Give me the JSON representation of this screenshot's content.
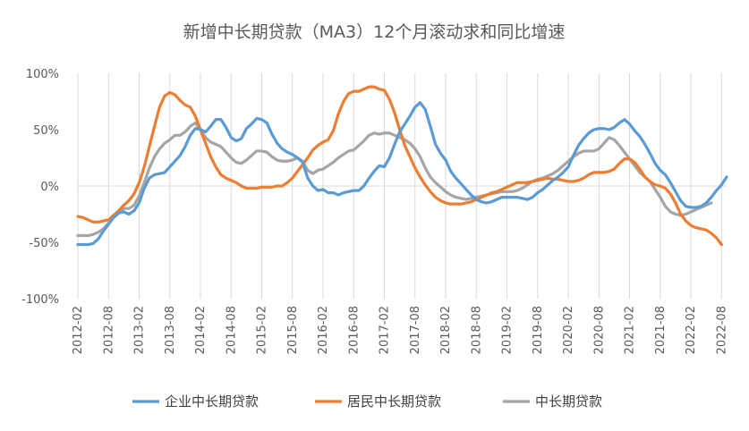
{
  "chart_data": {
    "type": "line",
    "title": "新增中长期贷款（MA3）12个月滚动求和同比增速",
    "xlabel": "",
    "ylabel": "",
    "ylim": [
      -100,
      100
    ],
    "y_ticks": [
      "100%",
      "50%",
      "0%",
      "-50%",
      "-100%"
    ],
    "y_tick_values": [
      100,
      50,
      0,
      -50,
      -100
    ],
    "x_tick_labels": [
      "2012-02",
      "2012-08",
      "2013-02",
      "2013-08",
      "2014-02",
      "2014-08",
      "2015-02",
      "2015-08",
      "2016-02",
      "2016-08",
      "2017-02",
      "2017-08",
      "2018-02",
      "2018-08",
      "2019-02",
      "2019-08",
      "2020-02",
      "2020-08",
      "2021-02",
      "2021-08",
      "2022-02",
      "2022-08"
    ],
    "legend_position": "bottom",
    "grid": "vertical",
    "start": "2012-02",
    "end": "2022-12",
    "series": [
      {
        "name": "企业中长期贷款",
        "color": "#5B9BD5",
        "values": [
          -52,
          -52,
          -52,
          -51,
          -47,
          -40,
          -34,
          -28,
          -24,
          -23,
          -25,
          -22,
          -15,
          -2,
          7,
          10,
          11,
          12,
          17,
          22,
          27,
          35,
          45,
          51,
          50,
          48,
          53,
          59,
          59,
          52,
          43,
          40,
          42,
          51,
          55,
          60,
          59,
          56,
          46,
          38,
          33,
          30,
          28,
          25,
          21,
          7,
          0,
          -4,
          -3,
          -6,
          -6,
          -8,
          -6,
          -5,
          -4,
          -4,
          0,
          7,
          13,
          18,
          17,
          25,
          37,
          48,
          55,
          62,
          70,
          74,
          68,
          53,
          37,
          29,
          23,
          13,
          7,
          2,
          -3,
          -8,
          -12,
          -14,
          -15,
          -14,
          -12,
          -10,
          -10,
          -10,
          -10,
          -11,
          -12,
          -10,
          -6,
          -3,
          1,
          5,
          8,
          12,
          17,
          27,
          36,
          42,
          47,
          50,
          51,
          51,
          50,
          52,
          56,
          59,
          55,
          49,
          44,
          37,
          29,
          20,
          14,
          10,
          3,
          -5,
          -13,
          -18,
          -19,
          -19,
          -18,
          -15,
          -10,
          -4,
          1,
          8
        ]
      },
      {
        "name": "居民中长期贷款",
        "color": "#ED7D31",
        "values": [
          -27,
          -28,
          -30,
          -32,
          -32,
          -31,
          -30,
          -26,
          -22,
          -17,
          -13,
          -7,
          3,
          17,
          35,
          53,
          70,
          80,
          83,
          81,
          76,
          72,
          70,
          62,
          50,
          38,
          26,
          17,
          10,
          7,
          5,
          3,
          0,
          -2,
          -2,
          -2,
          -1,
          -1,
          -1,
          0,
          0,
          3,
          7,
          13,
          19,
          25,
          32,
          36,
          39,
          41,
          49,
          64,
          75,
          82,
          84,
          84,
          86,
          88,
          88,
          86,
          85,
          77,
          65,
          50,
          36,
          26,
          16,
          8,
          1,
          -5,
          -10,
          -13,
          -15,
          -16,
          -16,
          -16,
          -15,
          -14,
          -12,
          -10,
          -8,
          -6,
          -5,
          -3,
          -1,
          1,
          3,
          3,
          3,
          4,
          5,
          6,
          7,
          6,
          6,
          5,
          4,
          4,
          5,
          7,
          10,
          12,
          12,
          12,
          13,
          15,
          20,
          24,
          24,
          21,
          15,
          8,
          4,
          1,
          0,
          -2,
          -7,
          -15,
          -25,
          -31,
          -35,
          -37,
          -38,
          -39,
          -42,
          -46,
          -52
        ]
      },
      {
        "name": "中长期贷款",
        "color": "#A5A5A5",
        "values": [
          -44,
          -44,
          -44,
          -43,
          -41,
          -38,
          -33,
          -28,
          -24,
          -20,
          -20,
          -17,
          -9,
          3,
          16,
          26,
          33,
          38,
          41,
          45,
          45,
          48,
          53,
          56,
          50,
          43,
          39,
          37,
          35,
          30,
          25,
          21,
          20,
          23,
          27,
          31,
          31,
          30,
          26,
          23,
          22,
          22,
          23,
          25,
          22,
          14,
          11,
          14,
          15,
          18,
          21,
          25,
          28,
          31,
          32,
          36,
          40,
          45,
          47,
          46,
          47,
          47,
          45,
          43,
          41,
          38,
          33,
          26,
          16,
          8,
          3,
          -1,
          -5,
          -8,
          -10,
          -11,
          -12,
          -11,
          -10,
          -9,
          -8,
          -7,
          -6,
          -5,
          -5,
          -5,
          -4,
          -2,
          1,
          4,
          6,
          7,
          9,
          11,
          14,
          18,
          22,
          26,
          29,
          31,
          31,
          31,
          33,
          38,
          43,
          41,
          36,
          30,
          24,
          18,
          12,
          8,
          4,
          -3,
          -10,
          -18,
          -23,
          -25,
          -26,
          -25,
          -23,
          -21,
          -19,
          -17,
          -15
        ]
      }
    ]
  }
}
